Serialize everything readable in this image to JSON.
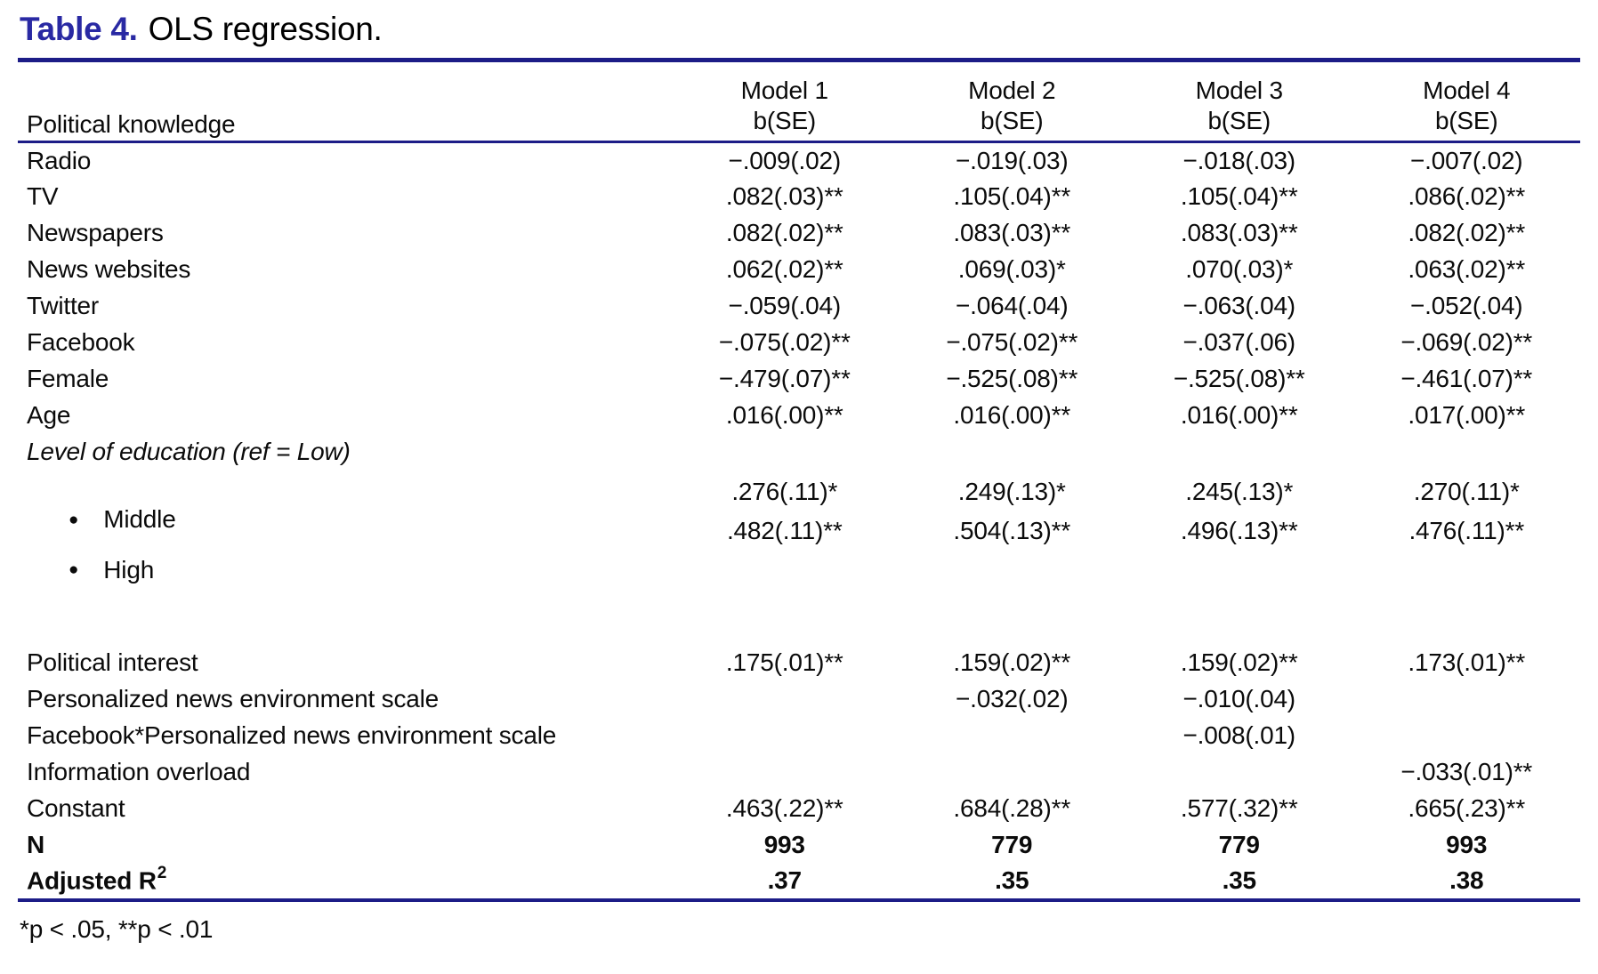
{
  "title": {
    "label": "Table 4.",
    "text": "OLS regression."
  },
  "header": {
    "row_label": "Political knowledge",
    "models": [
      "Model 1",
      "Model 2",
      "Model 3",
      "Model 4"
    ],
    "stat": "b(SE)"
  },
  "rows": [
    {
      "label": "Radio",
      "style": "normal",
      "values": [
        "−.009(.02)",
        "−.019(.03)",
        "−.018(.03)",
        "−.007(.02)"
      ]
    },
    {
      "label": "TV",
      "style": "normal",
      "values": [
        ".082(.03)**",
        ".105(.04)**",
        ".105(.04)**",
        ".086(.02)**"
      ]
    },
    {
      "label": "Newspapers",
      "style": "normal",
      "values": [
        ".082(.02)**",
        ".083(.03)**",
        ".083(.03)**",
        ".082(.02)**"
      ]
    },
    {
      "label": "News websites",
      "style": "normal",
      "values": [
        ".062(.02)**",
        ".069(.03)*",
        ".070(.03)*",
        ".063(.02)**"
      ]
    },
    {
      "label": "Twitter",
      "style": "normal",
      "values": [
        "−.059(.04)",
        "−.064(.04)",
        "−.063(.04)",
        "−.052(.04)"
      ]
    },
    {
      "label": "Facebook",
      "style": "normal",
      "values": [
        "−.075(.02)**",
        "−.075(.02)**",
        "−.037(.06)",
        "−.069(.02)**"
      ]
    },
    {
      "label": "Female",
      "style": "normal",
      "values": [
        "−.479(.07)**",
        "−.525(.08)**",
        "−.525(.08)**",
        "−.461(.07)**"
      ]
    },
    {
      "label": "Age",
      "style": "normal",
      "values": [
        ".016(.00)**",
        ".016(.00)**",
        ".016(.00)**",
        ".017(.00)**"
      ]
    },
    {
      "label": "Level of education (ref = Low)",
      "style": "italic",
      "values": [
        "",
        "",
        "",
        ""
      ]
    },
    {
      "label": "Middle",
      "style": "bullet-middle",
      "values": [
        ".276(.11)*",
        ".249(.13)*",
        ".245(.13)*",
        ".270(.11)*"
      ]
    },
    {
      "label": "High",
      "style": "bullet-high",
      "values": [
        ".482(.11)**",
        ".504(.13)**",
        ".496(.13)**",
        ".476(.11)**"
      ]
    },
    {
      "label": "",
      "style": "spacer",
      "values": [
        "",
        "",
        "",
        ""
      ]
    },
    {
      "label": "Political interest",
      "style": "normal",
      "values": [
        ".175(.01)**",
        ".159(.02)**",
        ".159(.02)**",
        ".173(.01)**"
      ]
    },
    {
      "label": "Personalized news environment scale",
      "style": "normal",
      "values": [
        "",
        "−.032(.02)",
        "−.010(.04)",
        ""
      ]
    },
    {
      "label": "Facebook*Personalized news environment scale",
      "style": "normal",
      "values": [
        "",
        "",
        "−.008(.01)",
        ""
      ]
    },
    {
      "label": "Information overload",
      "style": "normal",
      "values": [
        "",
        "",
        "",
        "−.033(.01)**"
      ]
    },
    {
      "label": "Constant",
      "style": "normal",
      "values": [
        ".463(.22)**",
        ".684(.28)**",
        ".577(.32)**",
        ".665(.23)**"
      ]
    },
    {
      "label": "N",
      "style": "bold",
      "values": [
        "993",
        "779",
        "779",
        "993"
      ]
    },
    {
      "label": "Adjusted R",
      "sup": "2",
      "style": "bold",
      "values": [
        ".37",
        ".35",
        ".35",
        ".38"
      ]
    }
  ],
  "footnote": "*p < .05, **p < .01",
  "colors": {
    "rule_navy": "#1c1c87",
    "title_blue": "#2929a3"
  }
}
